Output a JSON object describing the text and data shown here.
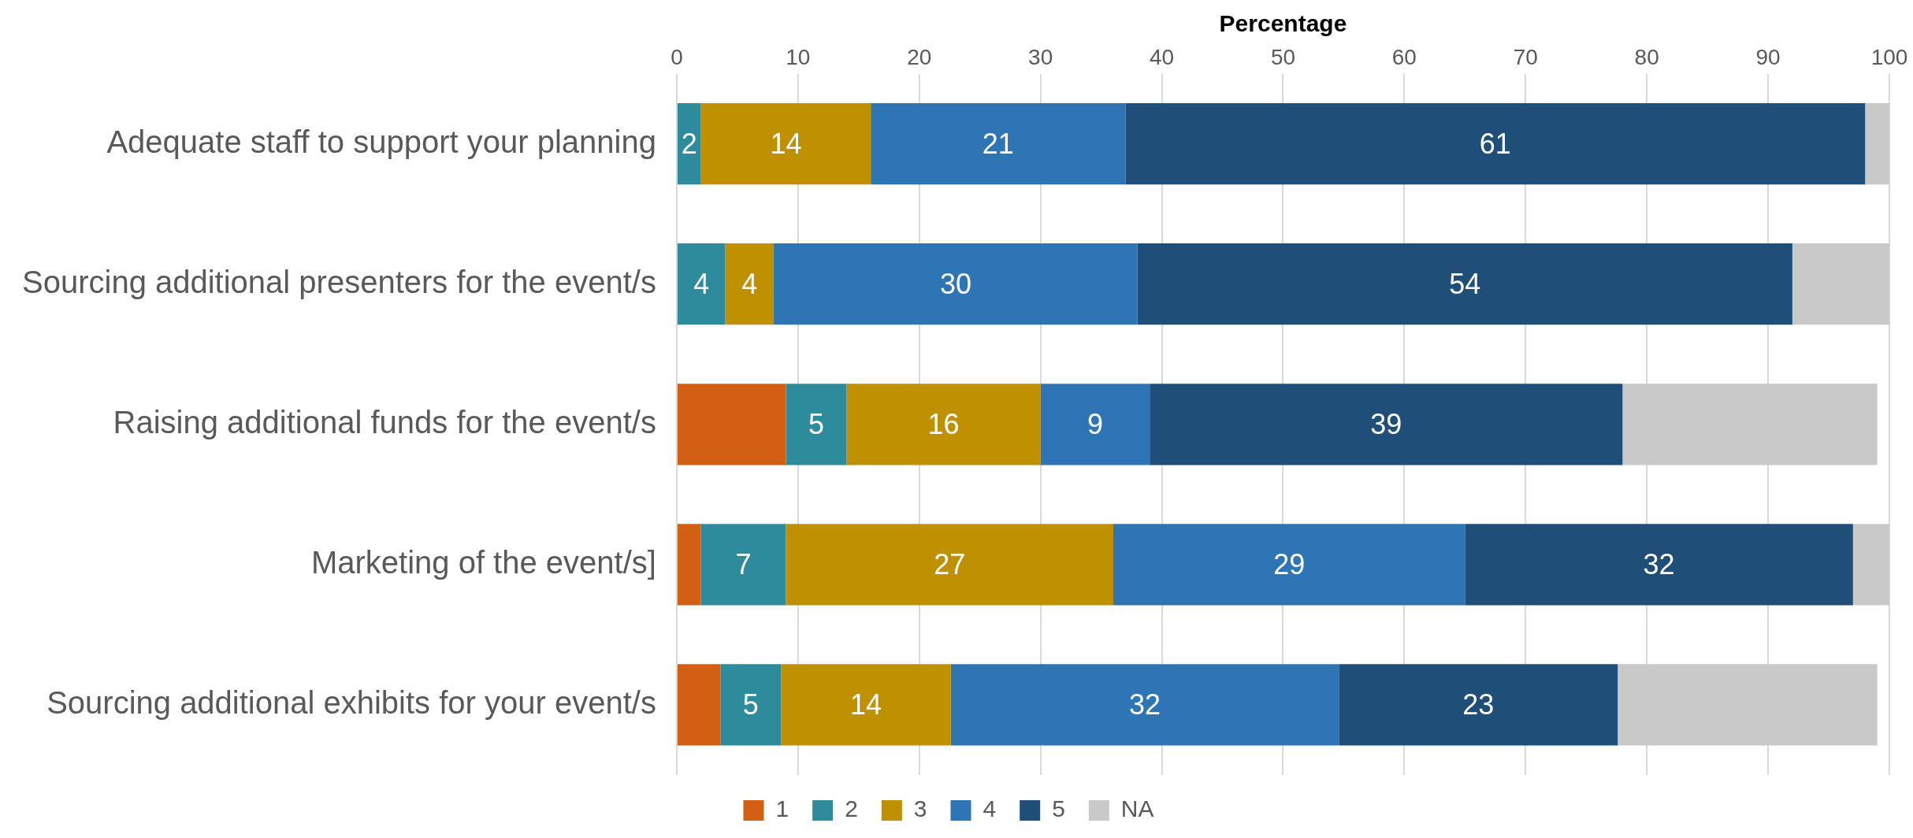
{
  "chart_data": {
    "type": "bar",
    "orientation": "horizontal",
    "stacked": true,
    "xlabel": "Percentage",
    "categories": [
      "Adequate staff to support your planning",
      "Sourcing additional presenters for the event/s",
      "Raising additional funds for the event/s",
      "Marketing of the event/s]",
      "Sourcing additional exhibits for your event/s"
    ],
    "series": [
      {
        "name": "1",
        "color": "#d35f14",
        "values": [
          0,
          0,
          9,
          2,
          3.6
        ],
        "value_labels": [
          null,
          null,
          null,
          null,
          null
        ]
      },
      {
        "name": "2",
        "color": "#2e8b9b",
        "values": [
          2,
          4,
          5,
          7,
          5
        ],
        "value_labels": [
          "2",
          "4",
          "5",
          "7",
          "5"
        ]
      },
      {
        "name": "3",
        "color": "#bf9000",
        "values": [
          14,
          4,
          16,
          27,
          14
        ],
        "value_labels": [
          "14",
          "4",
          "16",
          "27",
          "14"
        ]
      },
      {
        "name": "4",
        "color": "#2e75b6",
        "values": [
          21,
          30,
          9,
          29,
          32
        ],
        "value_labels": [
          "21",
          "30",
          "9",
          "29",
          "32"
        ]
      },
      {
        "name": "5",
        "color": "#1f4e79",
        "values": [
          61,
          54,
          39,
          32,
          23
        ],
        "value_labels": [
          "61",
          "54",
          "39",
          "32",
          "23"
        ]
      },
      {
        "name": "NA",
        "color": "#c9c9c9",
        "values": [
          2,
          8,
          21,
          3,
          21.4
        ],
        "value_labels": [
          null,
          null,
          null,
          null,
          null
        ]
      }
    ],
    "xlim": [
      0,
      100
    ],
    "xticks": [
      0,
      10,
      20,
      30,
      40,
      50,
      60,
      70,
      80,
      90,
      100
    ],
    "grid": "x",
    "legend": "bottom"
  }
}
